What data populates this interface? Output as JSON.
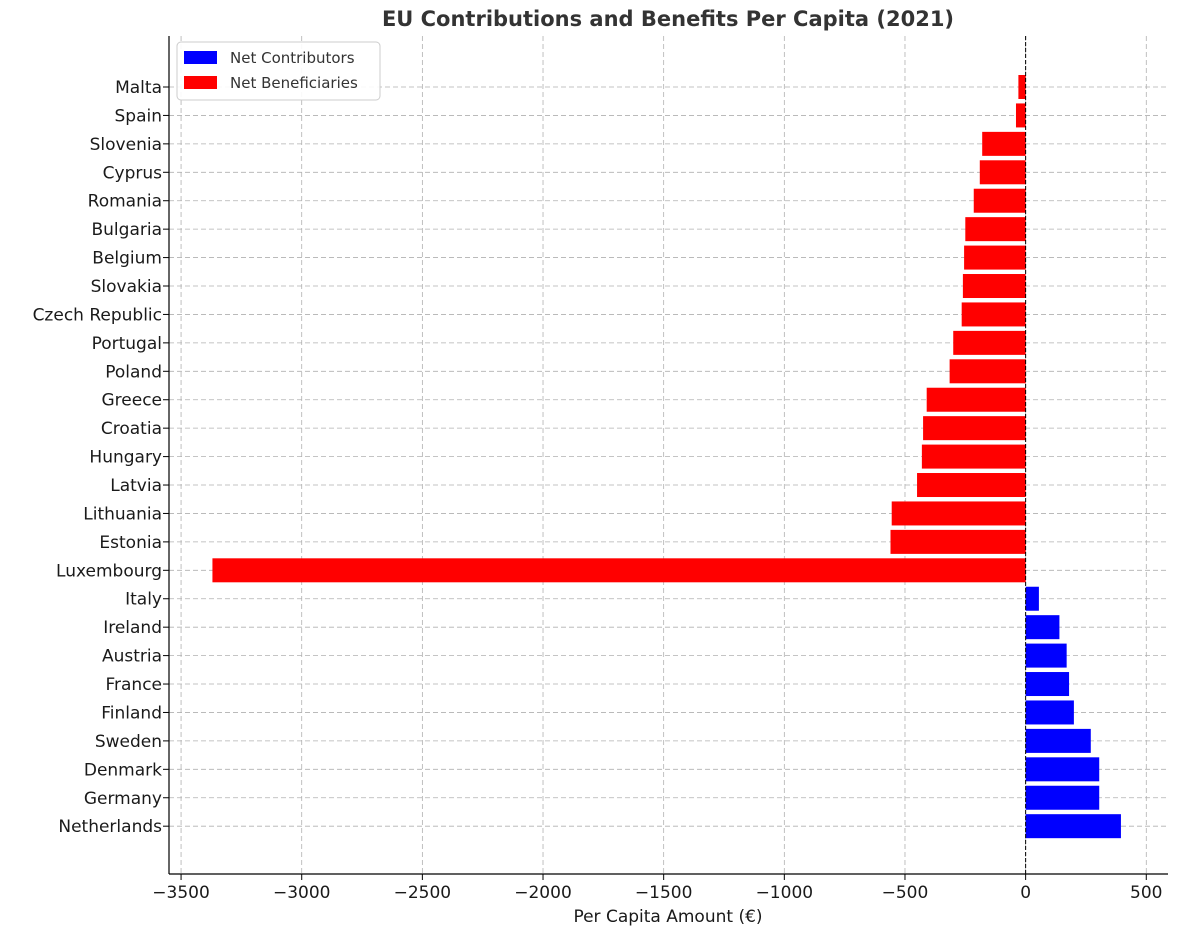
{
  "chart_data": {
    "type": "bar",
    "orientation": "horizontal",
    "title": "EU Contributions and Benefits Per Capita (2021)",
    "xlabel": "Per Capita Amount (€)",
    "ylabel": "",
    "xlim": [
      -3550,
      590
    ],
    "xticks": [
      -3500,
      -3000,
      -2500,
      -2000,
      -1500,
      -1000,
      -500,
      0,
      500
    ],
    "xtick_labels": [
      "−3500",
      "−3000",
      "−2500",
      "−2000",
      "−1500",
      "−1000",
      "−500",
      "0",
      "500"
    ],
    "grid": true,
    "legend_position": "top-left",
    "categories": [
      "Malta",
      "Spain",
      "Slovenia",
      "Cyprus",
      "Romania",
      "Bulgaria",
      "Belgium",
      "Slovakia",
      "Czech Republic",
      "Portugal",
      "Poland",
      "Greece",
      "Croatia",
      "Hungary",
      "Latvia",
      "Lithuania",
      "Estonia",
      "Luxembourg",
      "Italy",
      "Ireland",
      "Austria",
      "France",
      "Finland",
      "Sweden",
      "Denmark",
      "Germany",
      "Netherlands"
    ],
    "values": [
      -30,
      -40,
      -180,
      -190,
      -215,
      -250,
      -255,
      -260,
      -265,
      -300,
      -315,
      -410,
      -425,
      -430,
      -450,
      -555,
      -560,
      -3370,
      55,
      140,
      170,
      180,
      200,
      270,
      305,
      305,
      395
    ],
    "series": [
      {
        "name": "Net Contributors",
        "color": "#0000ff"
      },
      {
        "name": "Net Beneficiaries",
        "color": "#ff0000"
      }
    ],
    "zero_line": true
  }
}
